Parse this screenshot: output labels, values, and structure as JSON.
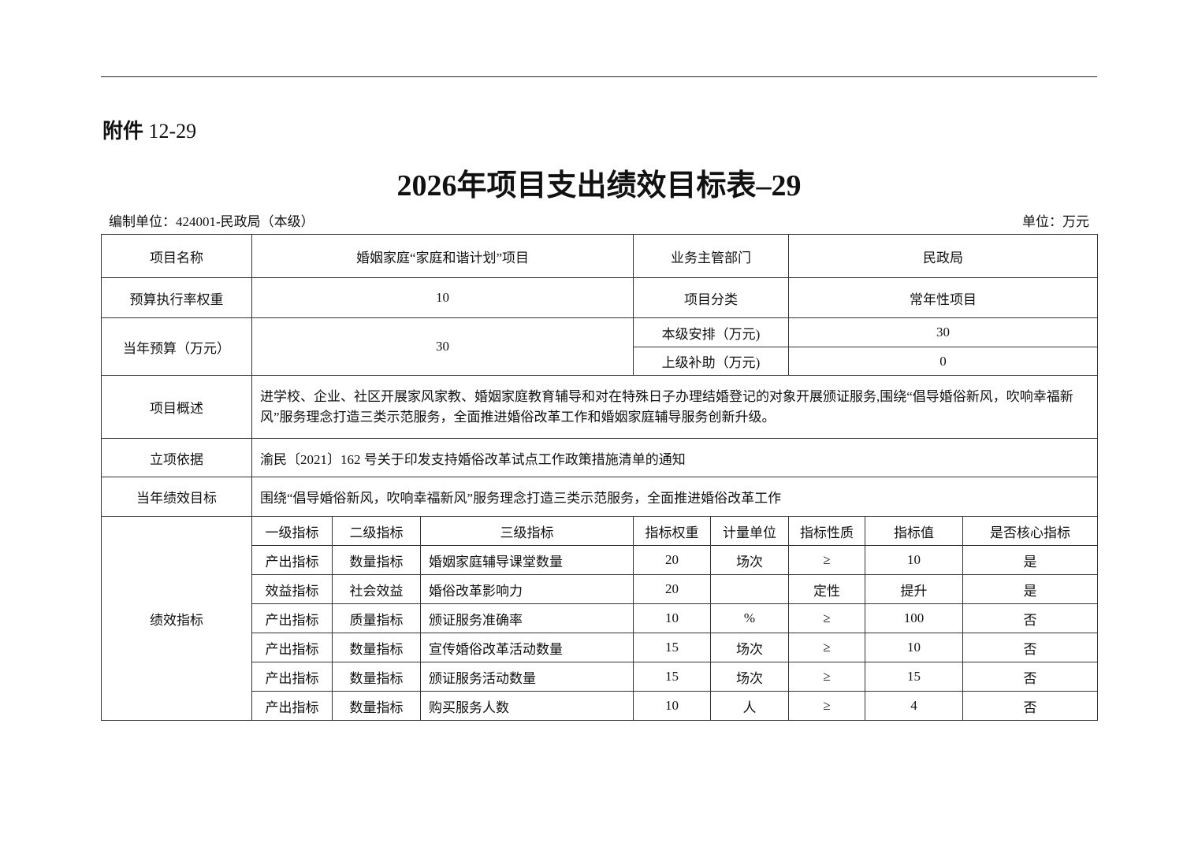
{
  "attachment": {
    "label": "附件",
    "number": "12-29"
  },
  "title": "2026年项目支出绩效目标表–29",
  "org": "编制单位：424001-民政局（本级）",
  "unit": "单位：万元",
  "info": {
    "project_name_label": "项目名称",
    "project_name": "婚姻家庭“家庭和谐计划”项目",
    "dept_label": "业务主管部门",
    "dept": "民政局",
    "weight_label": "预算执行率权重",
    "weight": "10",
    "category_label": "项目分类",
    "category": "常年性项目",
    "budget_label": "当年预算（万元）",
    "budget": "30",
    "local_label": "本级安排（万元)",
    "local": "30",
    "upper_label": "上级补助（万元)",
    "upper": "0",
    "overview_label": "项目概述",
    "overview": "进学校、企业、社区开展家风家教、婚姻家庭教育辅导和对在特殊日子办理结婚登记的对象开展颁证服务,围绕“倡导婚俗新风，吹响幸福新风”服务理念打造三类示范服务，全面推进婚俗改革工作和婚姻家庭辅导服务创新升级。",
    "basis_label": "立项依据",
    "basis": "渝民〔2021〕162  号关于印发支持婚俗改革试点工作政策措施清单的通知",
    "goal_label": "当年绩效目标",
    "goal": "围绕“倡导婚俗新风，吹响幸福新风”服务理念打造三类示范服务，全面推进婚俗改革工作"
  },
  "indicators": {
    "label": "绩效指标",
    "headers": [
      "一级指标",
      "二级指标",
      "三级指标",
      "指标权重",
      "计量单位",
      "指标性质",
      "指标值",
      "是否核心指标"
    ],
    "rows": [
      [
        "产出指标",
        "数量指标",
        "婚姻家庭辅导课堂数量",
        "20",
        "场次",
        "≥",
        "10",
        "是"
      ],
      [
        "效益指标",
        "社会效益",
        "婚俗改革影响力",
        "20",
        "",
        "定性",
        "提升",
        "是"
      ],
      [
        "产出指标",
        "质量指标",
        "颁证服务准确率",
        "10",
        "%",
        "≥",
        "100",
        "否"
      ],
      [
        "产出指标",
        "数量指标",
        "宣传婚俗改革活动数量",
        "15",
        "场次",
        "≥",
        "10",
        "否"
      ],
      [
        "产出指标",
        "数量指标",
        "颁证服务活动数量",
        "15",
        "场次",
        "≥",
        "15",
        "否"
      ],
      [
        "产出指标",
        "数量指标",
        "购买服务人数",
        "10",
        "人",
        "≥",
        "4",
        "否"
      ]
    ]
  }
}
